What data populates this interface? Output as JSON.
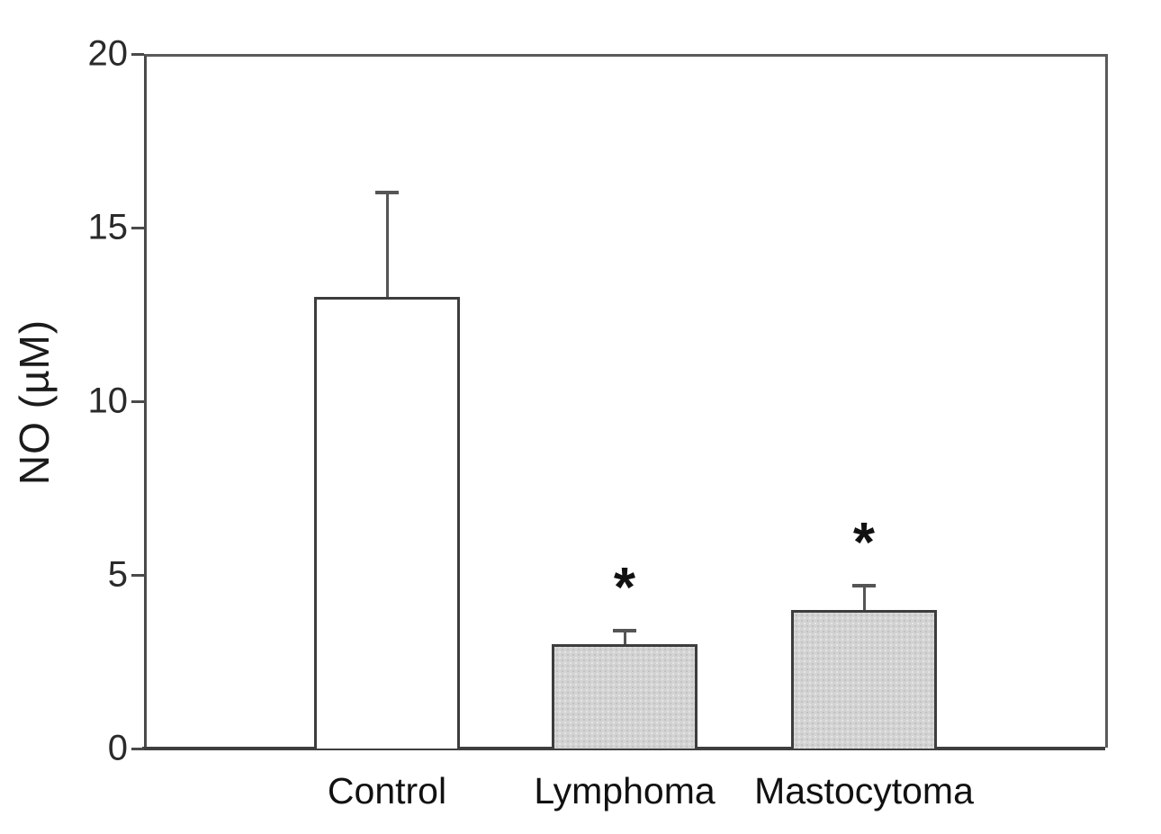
{
  "figure": {
    "background": "#ffffff"
  },
  "chart_data": {
    "type": "bar",
    "title": "",
    "xlabel": "",
    "ylabel": "NO (µM)",
    "categories": [
      "Control",
      "Lymphoma",
      "Mastocytoma"
    ],
    "values": [
      13,
      3,
      4
    ],
    "errors_plus": [
      3,
      0.4,
      0.7
    ],
    "significance": [
      "",
      "*",
      "*"
    ],
    "ylim": [
      0,
      20
    ],
    "yticks": [
      "0",
      "5",
      "10",
      "15",
      "20"
    ],
    "ytick_values": [
      0,
      5,
      10,
      15,
      20
    ],
    "grid": false,
    "legend": "none",
    "bar_styles": [
      "white",
      "stipple",
      "stipple"
    ],
    "colors": {
      "axis": "#4a4a4a",
      "bar_outline": "#3d3d3d",
      "bar_white": "#ffffff",
      "bar_gray": "#d3d3d3",
      "error_bar": "#555555",
      "text": "#111111"
    }
  }
}
